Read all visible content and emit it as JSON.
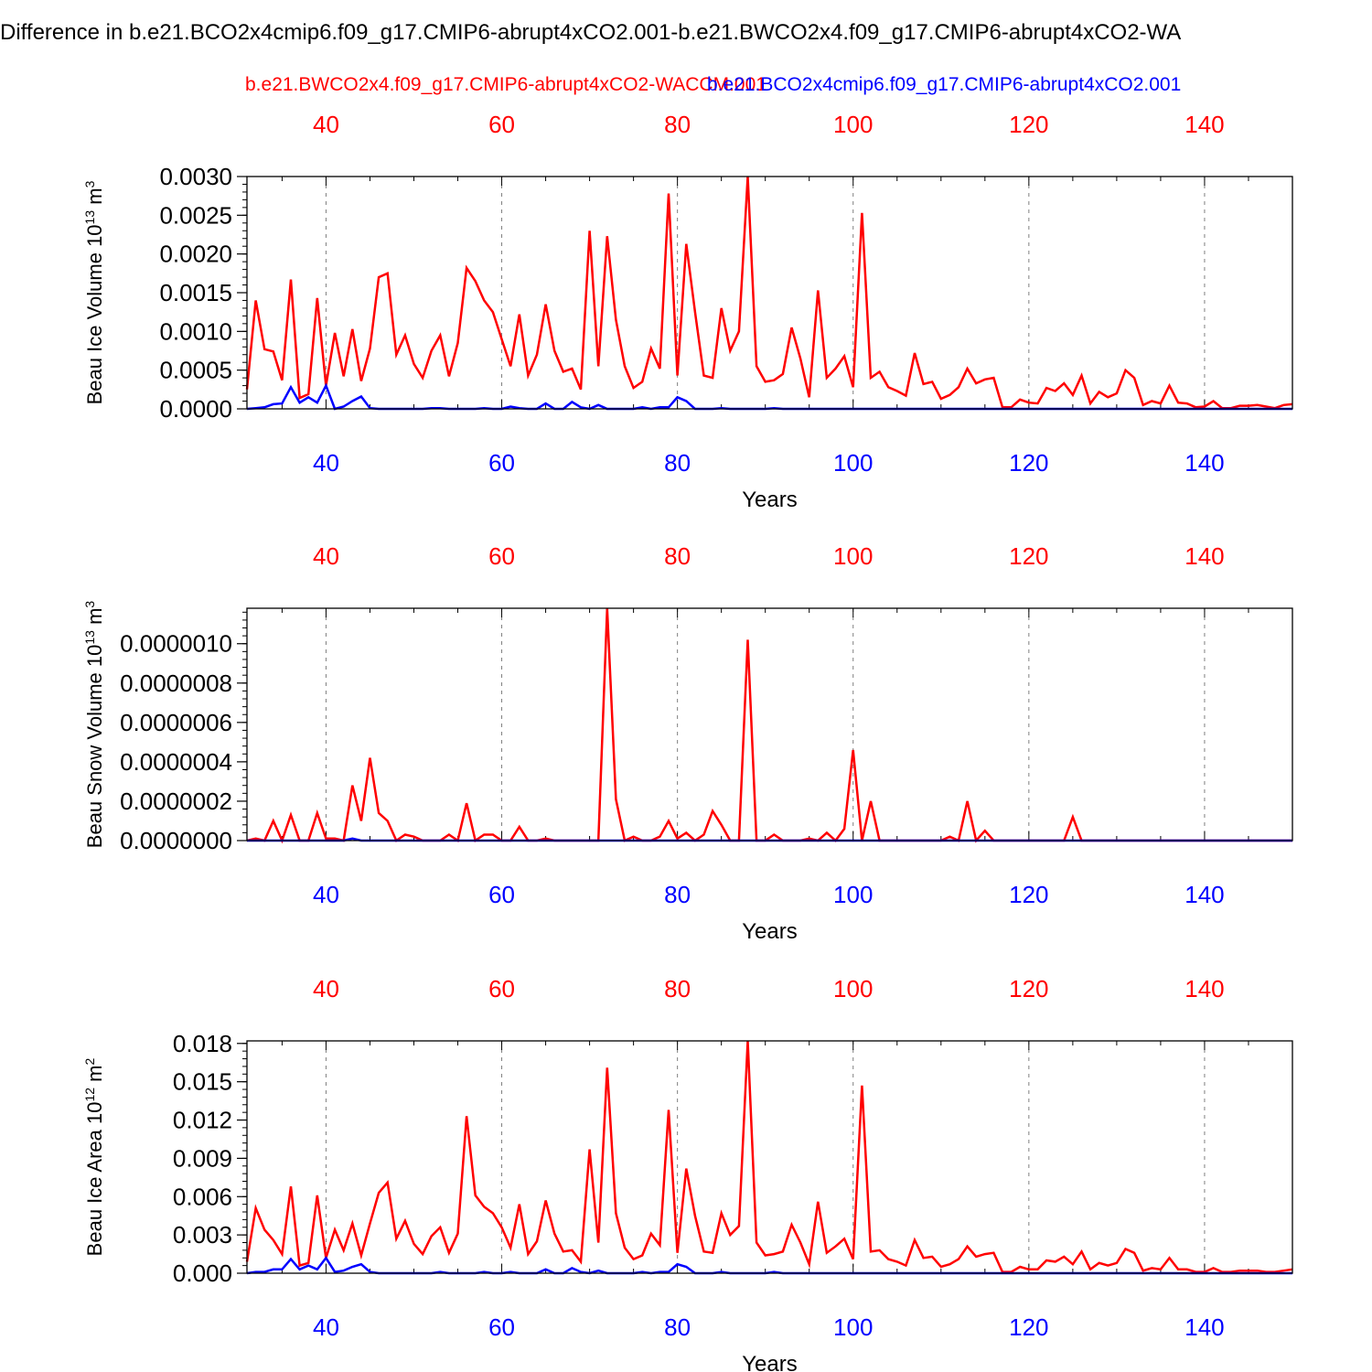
{
  "figure_title": "Difference in b.e21.BCO2x4cmip6.f09_g17.CMIP6-abrupt4xCO2.001-b.e21.BWCO2x4.f09_g17.CMIP6-abrupt4xCO2-WA",
  "legend": [
    {
      "label": "b.e21.BWCO2x4.f09_g17.CMIP6-abrupt4xCO2-WACCM.001",
      "color": "#ff0000"
    },
    {
      "label": "b.e21.BCO2x4cmip6.f09_g17.CMIP6-abrupt4xCO2.001",
      "color": "#0000ff"
    }
  ],
  "colors": {
    "series_red": "#ff0000",
    "series_blue": "#0000ff",
    "axis": "#000000",
    "grid": "#7f7f7f"
  },
  "chart_data": [
    {
      "type": "line",
      "ylabel": "Beau Ice Volume 10",
      "ylabel_exp": "13",
      "ylabel_unit": " m",
      "ylabel_unit_exp": "3",
      "xlabel": "Years",
      "xlim": [
        31,
        150
      ],
      "ylim": [
        0,
        0.003
      ],
      "x_ticks": [
        40,
        60,
        80,
        100,
        120,
        140
      ],
      "x_tick_labels": [
        "40",
        "60",
        "80",
        "100",
        "120",
        "140"
      ],
      "y_ticks": [
        0,
        0.0005,
        0.001,
        0.0015,
        0.002,
        0.0025,
        0.003
      ],
      "y_tick_labels": [
        "0.0000",
        "0.0005",
        "0.0010",
        "0.0015",
        "0.0020",
        "0.0025",
        "0.0030"
      ],
      "y_minor_step": 0.0001,
      "grid": "vertical dashed",
      "x_start": 31,
      "series": [
        {
          "color": "#ff0000",
          "values": [
            0.00025,
            0.0014,
            0.00077,
            0.00074,
            0.00037,
            0.00167,
            0.00014,
            0.00019,
            0.00143,
            0.0003,
            0.00098,
            0.00042,
            0.00103,
            0.00036,
            0.00078,
            0.0017,
            0.00175,
            0.0007,
            0.00095,
            0.00058,
            0.0004,
            0.00075,
            0.00095,
            0.00042,
            0.00085,
            0.00182,
            0.00165,
            0.0014,
            0.00125,
            0.0009,
            0.00055,
            0.00122,
            0.00043,
            0.0007,
            0.00135,
            0.00075,
            0.00048,
            0.00052,
            0.00025,
            0.0023,
            0.00055,
            0.00223,
            0.00115,
            0.00055,
            0.00027,
            0.00035,
            0.00078,
            0.00052,
            0.00278,
            0.00043,
            0.00213,
            0.00125,
            0.00043,
            0.0004,
            0.0013,
            0.00075,
            0.001,
            0.003,
            0.00055,
            0.00035,
            0.00037,
            0.00045,
            0.00105,
            0.00065,
            0.00015,
            0.00153,
            0.0004,
            0.00052,
            0.00068,
            0.00028,
            0.00253,
            0.0004,
            0.00048,
            0.00028,
            0.00023,
            0.00017,
            0.00072,
            0.00032,
            0.00035,
            0.00013,
            0.00018,
            0.00028,
            0.00052,
            0.00033,
            0.00038,
            0.0004,
            2e-05,
            2e-05,
            0.00012,
            8e-05,
            7e-05,
            0.00027,
            0.00023,
            0.00033,
            0.00018,
            0.00043,
            7e-05,
            0.00022,
            0.00015,
            0.0002,
            0.0005,
            0.0004,
            5e-05,
            0.0001,
            7e-05,
            0.0003,
            8e-05,
            7e-05,
            2e-05,
            3e-05,
            0.0001,
            1e-05,
            1e-05,
            4e-05,
            4e-05,
            5e-05,
            3e-05,
            1e-05,
            5e-05,
            6e-05
          ]
        },
        {
          "color": "#0000ff",
          "values": [
            0.0,
            1e-05,
            2e-05,
            6e-05,
            7e-05,
            0.00028,
            8e-05,
            0.00015,
            8e-05,
            0.0003,
            0.0,
            3e-05,
            0.0001,
            0.00016,
            1e-05,
            0.0,
            0.0,
            0.0,
            0.0,
            0.0,
            0.0,
            1e-05,
            1e-05,
            0.0,
            0.0,
            0.0,
            0.0,
            1e-05,
            0.0,
            0.0,
            3e-05,
            1e-05,
            0.0,
            0.0,
            7e-05,
            0.0,
            0.0,
            9e-05,
            2e-05,
            0.0,
            5e-05,
            0.0,
            0.0,
            0.0,
            0.0,
            2e-05,
            0.0,
            2e-05,
            2e-05,
            0.00015,
            0.0001,
            0.0,
            0.0,
            0.0,
            1e-05,
            0.0,
            0.0,
            0.0,
            0.0,
            0.0,
            1e-05,
            0.0,
            0.0,
            0.0,
            0.0,
            0.0,
            0.0,
            0.0,
            0.0,
            0.0,
            0.0,
            0.0,
            0.0,
            0.0,
            0.0,
            0.0,
            0.0,
            0.0,
            0.0,
            0.0,
            0.0,
            0.0,
            0.0,
            0.0,
            0.0,
            0.0,
            0.0,
            0.0,
            0.0,
            0.0,
            0.0,
            0.0,
            0.0,
            0.0,
            0.0,
            0.0,
            0.0,
            0.0,
            0.0,
            0.0,
            0.0,
            0.0,
            0.0,
            0.0,
            0.0,
            0.0,
            0.0,
            0.0,
            0.0,
            0.0,
            0.0,
            0.0,
            0.0,
            0.0,
            0.0,
            0.0,
            0.0,
            0.0,
            0.0,
            0.0
          ]
        }
      ]
    },
    {
      "type": "line",
      "ylabel": "Beau Snow Volume 10",
      "ylabel_exp": "13",
      "ylabel_unit": " m",
      "ylabel_unit_exp": "3",
      "xlabel": "Years",
      "xlim": [
        31,
        150
      ],
      "ylim": [
        0,
        1.18e-06
      ],
      "x_ticks": [
        40,
        60,
        80,
        100,
        120,
        140
      ],
      "x_tick_labels": [
        "40",
        "60",
        "80",
        "100",
        "120",
        "140"
      ],
      "y_ticks": [
        0,
        2e-07,
        4e-07,
        6e-07,
        8e-07,
        1e-06
      ],
      "y_tick_labels": [
        "0.0000000",
        "0.0000002",
        "0.0000004",
        "0.0000006",
        "0.0000008",
        "0.0000010"
      ],
      "y_minor_step": 4e-08,
      "grid": "vertical dashed",
      "x_start": 31,
      "series": [
        {
          "color": "#ff0000",
          "values": [
            0.0,
            1e-08,
            0.0,
            1e-07,
            0.0,
            1.3e-07,
            0.0,
            0.0,
            1.4e-07,
            1e-08,
            1e-08,
            0.0,
            2.8e-07,
            1e-07,
            4.2e-07,
            1.4e-07,
            1e-07,
            0.0,
            3e-08,
            2e-08,
            0.0,
            0.0,
            0.0,
            3e-08,
            0.0,
            1.9e-07,
            0.0,
            3e-08,
            3e-08,
            0.0,
            0.0,
            7e-08,
            0.0,
            0.0,
            1e-08,
            0.0,
            0.0,
            0.0,
            0.0,
            0.0,
            0.0,
            1.18e-06,
            2.1e-07,
            0.0,
            2e-08,
            0.0,
            0.0,
            2e-08,
            1e-07,
            1e-08,
            4e-08,
            0.0,
            3e-08,
            1.5e-07,
            8e-08,
            0.0,
            0.0,
            1.02e-06,
            0.0,
            0.0,
            3e-08,
            0.0,
            0.0,
            0.0,
            1e-08,
            0.0,
            4e-08,
            0.0,
            6e-08,
            4.6e-07,
            0.0,
            2e-07,
            0.0,
            0.0,
            0.0,
            0.0,
            0.0,
            0.0,
            0.0,
            0.0,
            2e-08,
            0.0,
            2e-07,
            0.0,
            5e-08,
            0.0,
            0.0,
            0.0,
            0.0,
            0.0,
            0.0,
            0.0,
            0.0,
            0.0,
            1.2e-07,
            0.0,
            0.0,
            0.0,
            0.0,
            0.0,
            0.0,
            0.0,
            0.0,
            0.0,
            0.0,
            0.0,
            0.0,
            0.0,
            0.0,
            0.0,
            0.0,
            0.0,
            0.0,
            0.0,
            0.0,
            0.0,
            0.0,
            0.0,
            0.0,
            0.0
          ]
        },
        {
          "color": "#0000ff",
          "values": [
            0.0,
            0.0,
            0.0,
            0.0,
            0.0,
            0.0,
            0.0,
            0.0,
            0.0,
            0.0,
            0.0,
            0.0,
            1e-08,
            0.0,
            0.0,
            0.0,
            0.0,
            0.0,
            0.0,
            0.0,
            0.0,
            0.0,
            0.0,
            0.0,
            0.0,
            0.0,
            0.0,
            0.0,
            0.0,
            0.0,
            0.0,
            0.0,
            0.0,
            0.0,
            0.0,
            0.0,
            0.0,
            0.0,
            0.0,
            0.0,
            0.0,
            0.0,
            0.0,
            0.0,
            0.0,
            0.0,
            0.0,
            0.0,
            0.0,
            0.0,
            0.0,
            0.0,
            0.0,
            0.0,
            0.0,
            0.0,
            0.0,
            0.0,
            0.0,
            0.0,
            0.0,
            0.0,
            0.0,
            0.0,
            0.0,
            0.0,
            0.0,
            0.0,
            0.0,
            0.0,
            0.0,
            0.0,
            0.0,
            0.0,
            0.0,
            0.0,
            0.0,
            0.0,
            0.0,
            0.0,
            0.0,
            0.0,
            0.0,
            0.0,
            0.0,
            0.0,
            0.0,
            0.0,
            0.0,
            0.0,
            0.0,
            0.0,
            0.0,
            0.0,
            0.0,
            0.0,
            0.0,
            0.0,
            0.0,
            0.0,
            0.0,
            0.0,
            0.0,
            0.0,
            0.0,
            0.0,
            0.0,
            0.0,
            0.0,
            0.0,
            0.0,
            0.0,
            0.0,
            0.0,
            0.0,
            0.0,
            0.0,
            0.0,
            0.0,
            0.0
          ]
        }
      ]
    },
    {
      "type": "line",
      "ylabel": "Beau Ice Area 10",
      "ylabel_exp": "12",
      "ylabel_unit": " m",
      "ylabel_unit_exp": "2",
      "xlabel": "Years",
      "xlim": [
        31,
        150
      ],
      "ylim": [
        0,
        0.0182
      ],
      "x_ticks": [
        40,
        60,
        80,
        100,
        120,
        140
      ],
      "x_tick_labels": [
        "40",
        "60",
        "80",
        "100",
        "120",
        "140"
      ],
      "y_ticks": [
        0,
        0.003,
        0.006,
        0.009,
        0.012,
        0.015,
        0.018
      ],
      "y_tick_labels": [
        "0.000",
        "0.003",
        "0.006",
        "0.009",
        "0.012",
        "0.015",
        "0.018"
      ],
      "y_minor_step": 0.0006,
      "grid": "vertical dashed",
      "x_start": 31,
      "series": [
        {
          "color": "#ff0000",
          "values": [
            0.0009,
            0.0051,
            0.0034,
            0.0026,
            0.0015,
            0.0068,
            0.0006,
            0.0008,
            0.0061,
            0.0012,
            0.0034,
            0.0018,
            0.0039,
            0.0014,
            0.0039,
            0.0063,
            0.0071,
            0.0027,
            0.0041,
            0.0023,
            0.0015,
            0.0029,
            0.0036,
            0.0016,
            0.0031,
            0.0123,
            0.0061,
            0.0052,
            0.0047,
            0.0036,
            0.002,
            0.0054,
            0.0015,
            0.0025,
            0.0057,
            0.0031,
            0.0017,
            0.0018,
            0.0009,
            0.0097,
            0.0024,
            0.0161,
            0.0047,
            0.002,
            0.0011,
            0.0014,
            0.0031,
            0.0022,
            0.0128,
            0.0016,
            0.0082,
            0.0045,
            0.0017,
            0.0016,
            0.0047,
            0.003,
            0.0037,
            0.0182,
            0.0024,
            0.0014,
            0.0015,
            0.0017,
            0.0038,
            0.0024,
            0.0007,
            0.0056,
            0.0016,
            0.0021,
            0.0027,
            0.0011,
            0.0147,
            0.0017,
            0.0018,
            0.0011,
            0.0009,
            0.0006,
            0.0026,
            0.0012,
            0.0013,
            0.0005,
            0.0007,
            0.0011,
            0.0021,
            0.0013,
            0.0015,
            0.0016,
            0.0001,
            0.0001,
            0.0005,
            0.0003,
            0.0003,
            0.001,
            0.0009,
            0.0013,
            0.0007,
            0.0017,
            0.0003,
            0.0008,
            0.0006,
            0.0008,
            0.0019,
            0.0016,
            0.0002,
            0.0004,
            0.0003,
            0.0012,
            0.0003,
            0.0003,
            0.0001,
            0.0001,
            0.0004,
            0.0001,
            0.0001,
            0.0002,
            0.0002,
            0.0002,
            0.0001,
            0.0001,
            0.0002,
            0.0003
          ]
        },
        {
          "color": "#0000ff",
          "values": [
            0.0,
            0.0001,
            0.0001,
            0.0003,
            0.0003,
            0.0011,
            0.0003,
            0.0006,
            0.0003,
            0.0012,
            0.0001,
            0.0002,
            0.0005,
            0.0007,
            0.0001,
            0.0,
            0.0,
            0.0,
            0.0,
            0.0,
            0.0,
            0.0,
            0.0001,
            0.0,
            0.0,
            0.0,
            0.0,
            0.0001,
            0.0,
            0.0,
            0.0001,
            0.0,
            0.0,
            0.0,
            0.0003,
            0.0,
            0.0,
            0.0004,
            0.0001,
            0.0,
            0.0002,
            0.0,
            0.0,
            0.0,
            0.0,
            0.0001,
            0.0,
            0.0001,
            0.0001,
            0.0007,
            0.0005,
            0.0,
            0.0,
            0.0,
            0.0001,
            0.0,
            0.0,
            0.0,
            0.0,
            0.0,
            0.0001,
            0.0,
            0.0,
            0.0,
            0.0,
            0.0,
            0.0,
            0.0,
            0.0,
            0.0,
            0.0,
            0.0,
            0.0,
            0.0,
            0.0,
            0.0,
            0.0,
            0.0,
            0.0,
            0.0,
            0.0,
            0.0,
            0.0,
            0.0,
            0.0,
            0.0,
            0.0,
            0.0,
            0.0,
            0.0,
            0.0,
            0.0,
            0.0,
            0.0,
            0.0,
            0.0,
            0.0,
            0.0,
            0.0,
            0.0,
            0.0,
            0.0,
            0.0,
            0.0,
            0.0,
            0.0,
            0.0,
            0.0,
            0.0,
            0.0,
            0.0,
            0.0,
            0.0,
            0.0,
            0.0,
            0.0,
            0.0,
            0.0,
            0.0,
            0.0
          ]
        }
      ]
    }
  ]
}
